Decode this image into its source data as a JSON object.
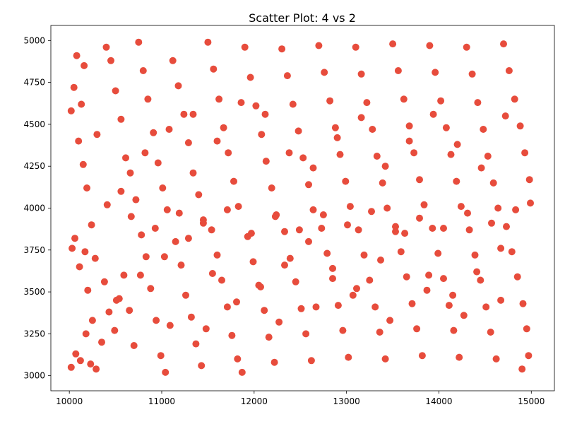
{
  "chart_data": {
    "type": "scatter",
    "title": "Scatter Plot: 4 vs 2",
    "xlabel": "",
    "ylabel": "",
    "xlim": [
      9800,
      15250
    ],
    "ylim": [
      2910,
      5090
    ],
    "xticks": [
      10000,
      11000,
      12000,
      13000,
      14000,
      15000
    ],
    "yticks": [
      3000,
      3250,
      3500,
      3750,
      4000,
      4250,
      4500,
      4750,
      5000
    ],
    "grid": false,
    "legend": "none",
    "marker_color": "#e74c3c",
    "points": [
      [
        10020,
        4580
      ],
      [
        10050,
        4720
      ],
      [
        10080,
        4910
      ],
      [
        10100,
        4400
      ],
      [
        10130,
        4620
      ],
      [
        10160,
        4850
      ],
      [
        10190,
        4120
      ],
      [
        10030,
        3760
      ],
      [
        10060,
        3820
      ],
      [
        10110,
        3650
      ],
      [
        10170,
        3740
      ],
      [
        10200,
        3510
      ],
      [
        10240,
        3900
      ],
      [
        10280,
        3700
      ],
      [
        10020,
        3050
      ],
      [
        10070,
        3130
      ],
      [
        10120,
        3090
      ],
      [
        10180,
        3250
      ],
      [
        10230,
        3070
      ],
      [
        10290,
        3040
      ],
      [
        10350,
        3200
      ],
      [
        10400,
        4960
      ],
      [
        10450,
        4880
      ],
      [
        10500,
        4700
      ],
      [
        10560,
        4530
      ],
      [
        10610,
        4300
      ],
      [
        10660,
        4210
      ],
      [
        10720,
        4050
      ],
      [
        10380,
        3560
      ],
      [
        10430,
        3380
      ],
      [
        10490,
        3270
      ],
      [
        10540,
        3460
      ],
      [
        10590,
        3600
      ],
      [
        10650,
        3390
      ],
      [
        10700,
        3180
      ],
      [
        10750,
        4990
      ],
      [
        10800,
        4820
      ],
      [
        10850,
        4650
      ],
      [
        10910,
        4450
      ],
      [
        10960,
        4270
      ],
      [
        11010,
        4120
      ],
      [
        11060,
        3990
      ],
      [
        10780,
        3840
      ],
      [
        10830,
        3710
      ],
      [
        10880,
        3520
      ],
      [
        10940,
        3330
      ],
      [
        10990,
        3120
      ],
      [
        11040,
        3020
      ],
      [
        11090,
        3300
      ],
      [
        11120,
        4880
      ],
      [
        11180,
        4730
      ],
      [
        11240,
        4560
      ],
      [
        11290,
        4390
      ],
      [
        11340,
        4210
      ],
      [
        11400,
        4080
      ],
      [
        11450,
        3930
      ],
      [
        11150,
        3800
      ],
      [
        11210,
        3660
      ],
      [
        11260,
        3480
      ],
      [
        11320,
        3350
      ],
      [
        11370,
        3190
      ],
      [
        11430,
        3060
      ],
      [
        11480,
        3280
      ],
      [
        11500,
        4990
      ],
      [
        11560,
        4830
      ],
      [
        11620,
        4650
      ],
      [
        11670,
        4480
      ],
      [
        11720,
        4330
      ],
      [
        11780,
        4160
      ],
      [
        11830,
        4010
      ],
      [
        11540,
        3870
      ],
      [
        11600,
        3720
      ],
      [
        11650,
        3570
      ],
      [
        11710,
        3410
      ],
      [
        11760,
        3240
      ],
      [
        11820,
        3100
      ],
      [
        11870,
        3020
      ],
      [
        11900,
        4960
      ],
      [
        11960,
        4780
      ],
      [
        12020,
        4610
      ],
      [
        12080,
        4440
      ],
      [
        12130,
        4280
      ],
      [
        12190,
        4120
      ],
      [
        12240,
        3960
      ],
      [
        11930,
        3830
      ],
      [
        11990,
        3680
      ],
      [
        12050,
        3540
      ],
      [
        12110,
        3390
      ],
      [
        12160,
        3230
      ],
      [
        12220,
        3080
      ],
      [
        12270,
        3320
      ],
      [
        12300,
        4950
      ],
      [
        12360,
        4790
      ],
      [
        12420,
        4620
      ],
      [
        12480,
        4460
      ],
      [
        12530,
        4300
      ],
      [
        12590,
        4140
      ],
      [
        12640,
        3990
      ],
      [
        12330,
        3860
      ],
      [
        12390,
        3700
      ],
      [
        12450,
        3560
      ],
      [
        12510,
        3400
      ],
      [
        12560,
        3250
      ],
      [
        12620,
        3090
      ],
      [
        12670,
        3410
      ],
      [
        12700,
        4970
      ],
      [
        12760,
        4810
      ],
      [
        12820,
        4640
      ],
      [
        12880,
        4480
      ],
      [
        12930,
        4320
      ],
      [
        12990,
        4160
      ],
      [
        13040,
        4010
      ],
      [
        12730,
        3880
      ],
      [
        12790,
        3730
      ],
      [
        12850,
        3580
      ],
      [
        12910,
        3420
      ],
      [
        12960,
        3270
      ],
      [
        13020,
        3110
      ],
      [
        13070,
        3480
      ],
      [
        13100,
        4960
      ],
      [
        13160,
        4800
      ],
      [
        13220,
        4630
      ],
      [
        13280,
        4470
      ],
      [
        13330,
        4310
      ],
      [
        13390,
        4150
      ],
      [
        13440,
        4000
      ],
      [
        13130,
        3870
      ],
      [
        13190,
        3720
      ],
      [
        13250,
        3570
      ],
      [
        13310,
        3410
      ],
      [
        13360,
        3260
      ],
      [
        13420,
        3100
      ],
      [
        13470,
        3330
      ],
      [
        13500,
        4980
      ],
      [
        13560,
        4820
      ],
      [
        13620,
        4650
      ],
      [
        13680,
        4490
      ],
      [
        13730,
        4330
      ],
      [
        13790,
        4170
      ],
      [
        13840,
        4020
      ],
      [
        13530,
        3890
      ],
      [
        13590,
        3740
      ],
      [
        13650,
        3590
      ],
      [
        13710,
        3430
      ],
      [
        13760,
        3280
      ],
      [
        13820,
        3120
      ],
      [
        13870,
        3510
      ],
      [
        13900,
        4970
      ],
      [
        13960,
        4810
      ],
      [
        14020,
        4640
      ],
      [
        14080,
        4480
      ],
      [
        14130,
        4320
      ],
      [
        14190,
        4160
      ],
      [
        14240,
        4010
      ],
      [
        13930,
        3880
      ],
      [
        13990,
        3730
      ],
      [
        14050,
        3580
      ],
      [
        14110,
        3420
      ],
      [
        14160,
        3270
      ],
      [
        14220,
        3110
      ],
      [
        14270,
        3360
      ],
      [
        14300,
        4960
      ],
      [
        14360,
        4800
      ],
      [
        14420,
        4630
      ],
      [
        14480,
        4470
      ],
      [
        14530,
        4310
      ],
      [
        14590,
        4150
      ],
      [
        14640,
        4000
      ],
      [
        14330,
        3870
      ],
      [
        14390,
        3720
      ],
      [
        14450,
        3570
      ],
      [
        14510,
        3410
      ],
      [
        14560,
        3260
      ],
      [
        14620,
        3100
      ],
      [
        14670,
        3450
      ],
      [
        14700,
        4980
      ],
      [
        14760,
        4820
      ],
      [
        14820,
        4650
      ],
      [
        14880,
        4490
      ],
      [
        14930,
        4330
      ],
      [
        14980,
        4170
      ],
      [
        14990,
        4030
      ],
      [
        14730,
        3890
      ],
      [
        14790,
        3740
      ],
      [
        14850,
        3590
      ],
      [
        14910,
        3430
      ],
      [
        14950,
        3280
      ],
      [
        14970,
        3120
      ],
      [
        14900,
        3040
      ],
      [
        10300,
        4440
      ],
      [
        10560,
        4100
      ],
      [
        10820,
        4330
      ],
      [
        11080,
        4470
      ],
      [
        11340,
        4560
      ],
      [
        11600,
        4400
      ],
      [
        11860,
        4630
      ],
      [
        12120,
        4560
      ],
      [
        12380,
        4330
      ],
      [
        12640,
        4240
      ],
      [
        12900,
        4420
      ],
      [
        13160,
        4540
      ],
      [
        13420,
        4250
      ],
      [
        13680,
        4400
      ],
      [
        13940,
        4560
      ],
      [
        14200,
        4380
      ],
      [
        14460,
        4240
      ],
      [
        14720,
        4550
      ],
      [
        10250,
        3330
      ],
      [
        10510,
        3450
      ],
      [
        10770,
        3600
      ],
      [
        11030,
        3710
      ],
      [
        11290,
        3820
      ],
      [
        11550,
        3610
      ],
      [
        11810,
        3440
      ],
      [
        12070,
        3530
      ],
      [
        12330,
        3660
      ],
      [
        12590,
        3800
      ],
      [
        12850,
        3640
      ],
      [
        13110,
        3520
      ],
      [
        13370,
        3690
      ],
      [
        13630,
        3850
      ],
      [
        13890,
        3600
      ],
      [
        14150,
        3480
      ],
      [
        14410,
        3620
      ],
      [
        14670,
        3760
      ],
      [
        10150,
        4260
      ],
      [
        10410,
        4020
      ],
      [
        10670,
        3950
      ],
      [
        10930,
        3880
      ],
      [
        11190,
        3970
      ],
      [
        11450,
        3910
      ],
      [
        11710,
        3990
      ],
      [
        11970,
        3850
      ],
      [
        12230,
        3950
      ],
      [
        12490,
        3870
      ],
      [
        12750,
        3960
      ],
      [
        13010,
        3900
      ],
      [
        13270,
        3980
      ],
      [
        13530,
        3860
      ],
      [
        13790,
        3940
      ],
      [
        14050,
        3880
      ],
      [
        14310,
        3970
      ],
      [
        14570,
        3910
      ],
      [
        14830,
        3990
      ]
    ]
  }
}
